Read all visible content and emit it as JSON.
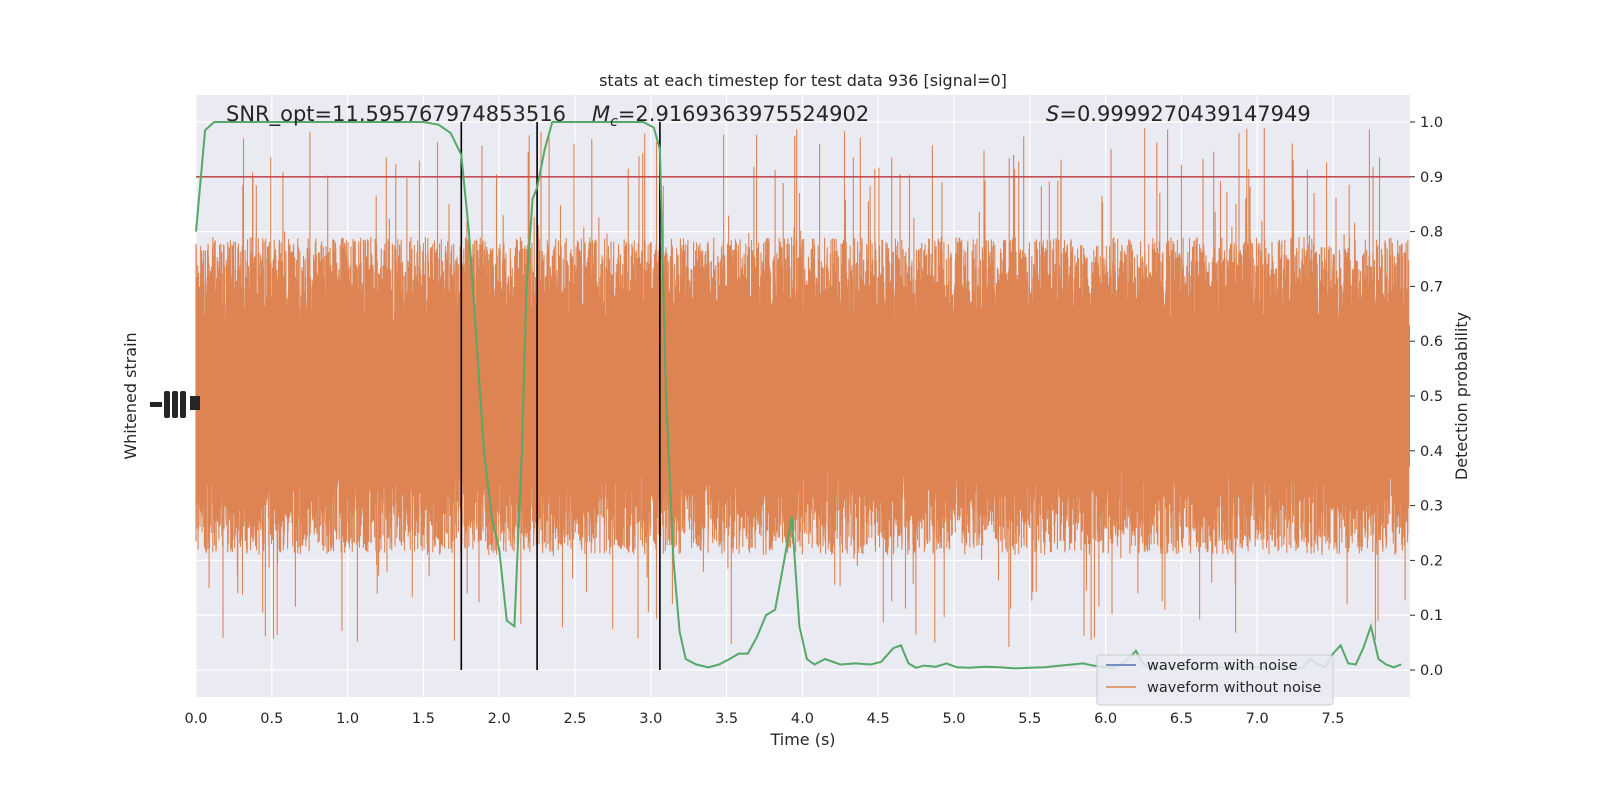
{
  "chart_data": {
    "type": "line",
    "title": "stats at each timestep for test data 936 [signal=0]",
    "xlabel": "Time (s)",
    "ylabel_left": "Whitened strain",
    "ylabel_right": "Detection probability",
    "xlim": [
      0.0,
      8.0
    ],
    "ylim_right": [
      -0.05,
      1.05
    ],
    "x_ticks": [
      "0.0",
      "0.5",
      "1.0",
      "1.5",
      "2.0",
      "2.5",
      "3.0",
      "3.5",
      "4.0",
      "4.5",
      "5.0",
      "5.5",
      "6.0",
      "6.5",
      "7.0",
      "7.5"
    ],
    "y_right_ticks": [
      "0.0",
      "0.1",
      "0.2",
      "0.3",
      "0.4",
      "0.5",
      "0.6",
      "0.7",
      "0.8",
      "0.9",
      "1.0"
    ],
    "grid": true,
    "legend_position": "lower-right",
    "annotations": {
      "snr": "SNR_opt=11.595767974853516",
      "mc_symbol": "M",
      "mc_subscript": "c",
      "mc_value": "=2.9169363975524902",
      "s_symbol": "S",
      "s_value": "=0.9999270439147949"
    },
    "threshold": {
      "y": 0.9,
      "color": "#c44e52"
    },
    "vertical_lines": {
      "x": [
        1.75,
        2.25,
        3.06
      ],
      "color": "#000000"
    },
    "series": [
      {
        "name": "waveform with noise",
        "color": "#4c72b0",
        "kind": "noise-trace"
      },
      {
        "name": "waveform without noise",
        "color": "#dd8452",
        "kind": "noise-trace",
        "typical_band": [
          0.31,
          0.69
        ],
        "peak_range": [
          0.04,
          0.99
        ]
      },
      {
        "name": "Detection probability",
        "color": "#55a868",
        "kind": "line",
        "x": [
          0.0,
          0.06,
          0.12,
          0.25,
          0.5,
          0.75,
          1.0,
          1.25,
          1.5,
          1.6,
          1.68,
          1.75,
          1.8,
          1.85,
          1.9,
          1.95,
          2.0,
          2.05,
          2.1,
          2.15,
          2.18,
          2.22,
          2.25,
          2.3,
          2.35,
          2.4,
          2.5,
          2.75,
          2.95,
          3.02,
          3.06,
          3.1,
          3.15,
          3.19,
          3.23,
          3.3,
          3.38,
          3.45,
          3.52,
          3.58,
          3.64,
          3.7,
          3.76,
          3.82,
          3.88,
          3.93,
          3.98,
          4.03,
          4.08,
          4.15,
          4.25,
          4.35,
          4.45,
          4.52,
          4.6,
          4.65,
          4.7,
          4.75,
          4.8,
          4.88,
          4.95,
          5.02,
          5.1,
          5.2,
          5.3,
          5.4,
          5.5,
          5.6,
          5.7,
          5.78,
          5.85,
          5.92,
          6.0,
          6.05,
          6.1,
          6.15,
          6.2,
          6.25,
          6.3,
          6.35,
          6.45,
          6.55,
          6.65,
          6.75,
          6.85,
          6.95,
          7.05,
          7.15,
          7.25,
          7.3,
          7.35,
          7.4,
          7.45,
          7.5,
          7.55,
          7.6,
          7.65,
          7.7,
          7.75,
          7.8,
          7.85,
          7.9,
          7.95
        ],
        "y": [
          0.8,
          0.985,
          1.0,
          1.0,
          1.0,
          1.0,
          1.0,
          1.0,
          1.0,
          0.995,
          0.98,
          0.94,
          0.8,
          0.6,
          0.4,
          0.28,
          0.22,
          0.09,
          0.08,
          0.4,
          0.7,
          0.86,
          0.88,
          0.95,
          1.0,
          1.0,
          1.0,
          1.0,
          1.0,
          0.99,
          0.95,
          0.5,
          0.2,
          0.07,
          0.02,
          0.01,
          0.005,
          0.01,
          0.02,
          0.03,
          0.03,
          0.06,
          0.1,
          0.11,
          0.2,
          0.28,
          0.08,
          0.02,
          0.01,
          0.02,
          0.01,
          0.012,
          0.01,
          0.015,
          0.04,
          0.045,
          0.012,
          0.004,
          0.008,
          0.006,
          0.012,
          0.005,
          0.004,
          0.006,
          0.005,
          0.003,
          0.004,
          0.005,
          0.008,
          0.01,
          0.012,
          0.008,
          0.005,
          0.004,
          0.01,
          0.02,
          0.035,
          0.01,
          0.005,
          0.004,
          0.004,
          0.005,
          0.004,
          0.005,
          0.004,
          0.005,
          0.005,
          0.004,
          0.004,
          0.004,
          0.02,
          0.01,
          0.005,
          0.03,
          0.045,
          0.012,
          0.01,
          0.04,
          0.08,
          0.02,
          0.01,
          0.005,
          0.01
        ]
      }
    ]
  }
}
